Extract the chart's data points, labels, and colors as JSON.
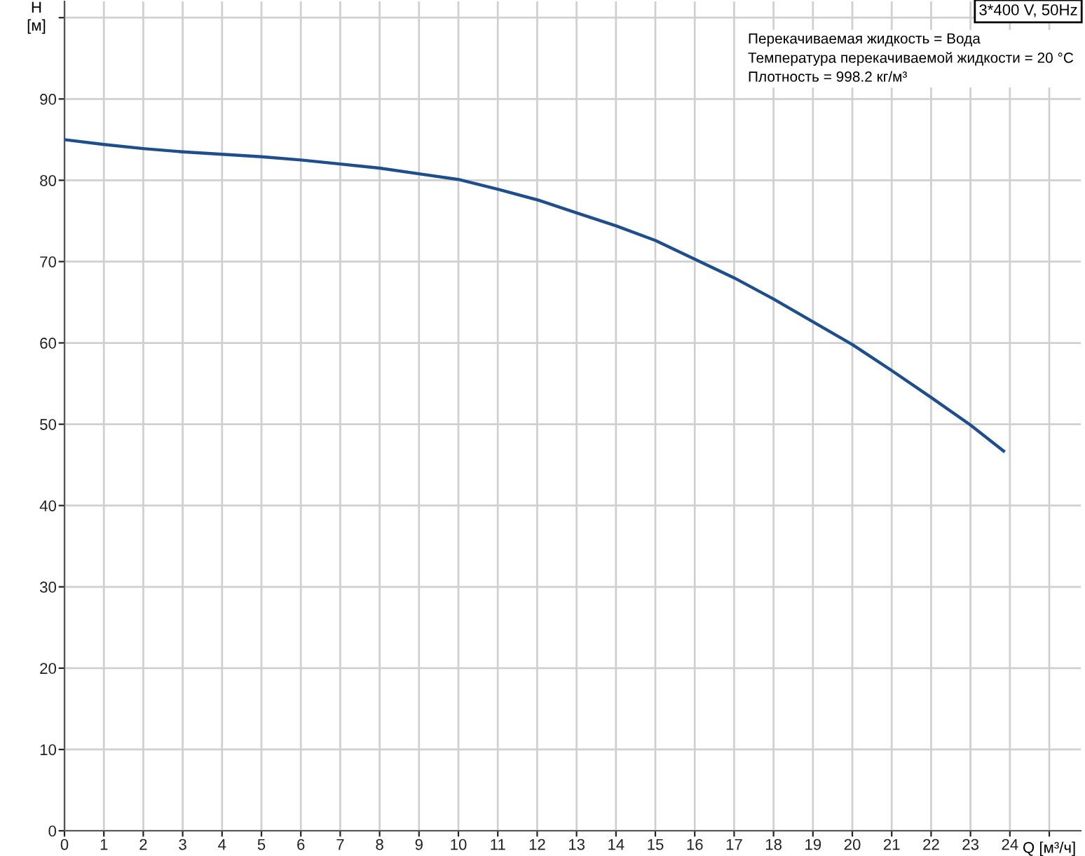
{
  "chart_data": {
    "type": "line",
    "xlabel": "Q [м³/ч]",
    "ylabel": "H\n[м]",
    "x": [
      0,
      1,
      2,
      3,
      4,
      5,
      6,
      7,
      8,
      9,
      10,
      11,
      12,
      13,
      14,
      15,
      16,
      17,
      18,
      19,
      20,
      21,
      22,
      23,
      23.84
    ],
    "series": [
      {
        "color": "#1f4e8c",
        "values": [
          85.0,
          84.4,
          83.9,
          83.5,
          83.2,
          82.9,
          82.5,
          82.0,
          81.5,
          80.8,
          80.1,
          78.9,
          77.6,
          76.0,
          74.4,
          72.6,
          70.3,
          68.0,
          65.4,
          62.6,
          59.8,
          56.6,
          53.3,
          49.9,
          46.7
        ]
      }
    ],
    "xlim": [
      0,
      25.8
    ],
    "ylim": [
      0,
      102
    ],
    "xticks": [
      0,
      1,
      2,
      3,
      4,
      5,
      6,
      7,
      8,
      9,
      10,
      11,
      12,
      13,
      14,
      15,
      16,
      17,
      18,
      19,
      20,
      21,
      22,
      23,
      24,
      {
        "value": 25,
        "label": null
      }
    ],
    "yticks": [
      0,
      10,
      20,
      30,
      40,
      50,
      60,
      70,
      80,
      90,
      {
        "value": 100,
        "label": null
      }
    ],
    "grid": true,
    "marker": "none",
    "line_style": "solid",
    "annotations": [
      "3*400 V, 50Hz",
      "Перекачиваемая жидкость = Вода",
      "Температура перекачиваемой жидкости = 20 °C",
      "Плотность = 998.2 кг/м³"
    ]
  }
}
